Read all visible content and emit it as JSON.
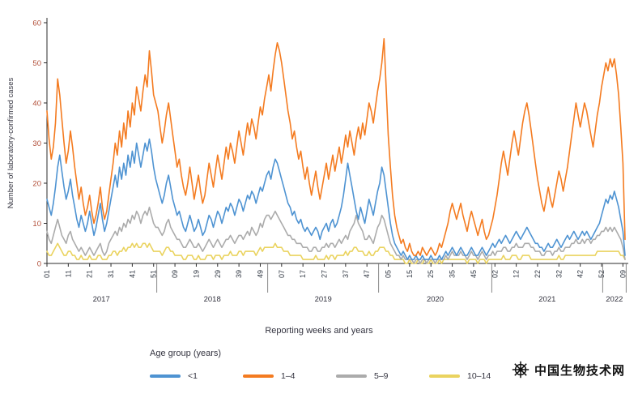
{
  "chart_data": {
    "type": "line",
    "title": "",
    "ylabel": "Number of laboratory-confirmed cases",
    "xlabel": "Reporting weeks and years",
    "legend_title": "Age group (years)",
    "ylim": [
      0,
      60
    ],
    "yticks": [
      0,
      10,
      20,
      30,
      40,
      50,
      60
    ],
    "x_tick_interval": 10,
    "x_tick_labels": [
      "01",
      "11",
      "21",
      "31",
      "41",
      "51",
      "09",
      "19",
      "29",
      "39",
      "49",
      "07",
      "17",
      "27",
      "37",
      "47",
      "05",
      "15",
      "25",
      "35",
      "45",
      "02",
      "12",
      "22",
      "32",
      "42",
      "52",
      "09"
    ],
    "years": [
      {
        "label": "2017",
        "start": 0,
        "end": 51
      },
      {
        "label": "2018",
        "start": 52,
        "end": 103
      },
      {
        "label": "2019",
        "start": 104,
        "end": 155
      },
      {
        "label": "2020",
        "start": 156,
        "end": 208
      },
      {
        "label": "2021",
        "start": 209,
        "end": 260
      },
      {
        "label": "2022",
        "start": 261,
        "end": 271
      }
    ],
    "colors": {
      "y_tick_text": "#b2503a",
      "x_tick_text": "#333a45",
      "axis_line": "#2b2b2b",
      "separator": "#6b6b6b",
      "text": "#33333f"
    },
    "draw_order": [
      3,
      2,
      0,
      1
    ],
    "series": [
      {
        "name": "<1",
        "color": "#4e93d2",
        "values": [
          16,
          14,
          12,
          15,
          19,
          24,
          27,
          23,
          19,
          16,
          18,
          21,
          17,
          14,
          11,
          9,
          12,
          10,
          8,
          10,
          13,
          10,
          7,
          9,
          12,
          15,
          11,
          8,
          10,
          13,
          16,
          19,
          22,
          19,
          24,
          21,
          25,
          22,
          27,
          24,
          28,
          25,
          30,
          27,
          24,
          27,
          30,
          28,
          31,
          28,
          24,
          21,
          19,
          17,
          15,
          17,
          20,
          22,
          19,
          16,
          14,
          12,
          13,
          11,
          9,
          8,
          10,
          12,
          10,
          8,
          9,
          11,
          9,
          7,
          8,
          10,
          12,
          11,
          9,
          11,
          13,
          12,
          10,
          12,
          14,
          13,
          15,
          14,
          12,
          14,
          16,
          15,
          13,
          15,
          17,
          16,
          18,
          17,
          15,
          17,
          19,
          18,
          20,
          22,
          23,
          21,
          24,
          26,
          25,
          23,
          21,
          19,
          17,
          15,
          14,
          12,
          13,
          11,
          10,
          11,
          9,
          8,
          9,
          8,
          7,
          8,
          9,
          8,
          6,
          8,
          9,
          10,
          8,
          10,
          11,
          9,
          10,
          12,
          14,
          17,
          21,
          25,
          22,
          19,
          16,
          13,
          11,
          14,
          12,
          10,
          13,
          16,
          14,
          12,
          15,
          18,
          20,
          24,
          22,
          18,
          14,
          10,
          7,
          5,
          4,
          3,
          2,
          3,
          2,
          1,
          2,
          1,
          1,
          2,
          1,
          1,
          2,
          1,
          1,
          1,
          2,
          1,
          1,
          1,
          2,
          1,
          2,
          3,
          2,
          3,
          4,
          3,
          2,
          3,
          4,
          3,
          2,
          2,
          3,
          4,
          3,
          2,
          2,
          3,
          4,
          3,
          2,
          3,
          4,
          5,
          4,
          5,
          6,
          5,
          6,
          7,
          6,
          5,
          6,
          7,
          8,
          7,
          6,
          7,
          8,
          9,
          8,
          7,
          6,
          5,
          5,
          4,
          4,
          3,
          4,
          5,
          4,
          4,
          5,
          6,
          5,
          4,
          5,
          6,
          7,
          6,
          7,
          8,
          7,
          6,
          7,
          8,
          7,
          8,
          7,
          6,
          7,
          8,
          9,
          10,
          12,
          14,
          16,
          15,
          17,
          16,
          18,
          16,
          14,
          11,
          8,
          2
        ]
      },
      {
        "name": "1–4",
        "color": "#f47b20",
        "values": [
          38,
          31,
          26,
          29,
          35,
          46,
          42,
          36,
          30,
          25,
          28,
          33,
          29,
          24,
          20,
          16,
          19,
          15,
          12,
          14,
          17,
          13,
          10,
          12,
          15,
          19,
          14,
          11,
          13,
          17,
          21,
          25,
          30,
          27,
          33,
          29,
          35,
          31,
          38,
          34,
          40,
          37,
          44,
          41,
          38,
          43,
          47,
          44,
          53,
          48,
          42,
          40,
          38,
          34,
          30,
          33,
          37,
          40,
          36,
          32,
          28,
          24,
          26,
          22,
          19,
          17,
          20,
          24,
          20,
          16,
          19,
          22,
          18,
          15,
          17,
          21,
          25,
          22,
          19,
          23,
          27,
          24,
          21,
          25,
          29,
          26,
          30,
          28,
          25,
          29,
          33,
          30,
          27,
          31,
          35,
          32,
          36,
          34,
          31,
          35,
          39,
          37,
          41,
          44,
          47,
          43,
          48,
          52,
          55,
          53,
          50,
          46,
          42,
          38,
          35,
          31,
          33,
          29,
          26,
          28,
          24,
          21,
          24,
          20,
          17,
          20,
          23,
          19,
          16,
          19,
          22,
          25,
          21,
          24,
          27,
          23,
          26,
          29,
          25,
          28,
          32,
          29,
          33,
          30,
          27,
          31,
          34,
          31,
          35,
          32,
          36,
          40,
          38,
          35,
          39,
          43,
          46,
          50,
          56,
          44,
          32,
          24,
          17,
          12,
          9,
          7,
          5,
          6,
          4,
          3,
          5,
          3,
          2,
          2,
          3,
          2,
          4,
          3,
          2,
          3,
          4,
          3,
          2,
          3,
          5,
          4,
          6,
          8,
          10,
          13,
          15,
          13,
          11,
          13,
          15,
          12,
          10,
          8,
          11,
          13,
          11,
          9,
          7,
          9,
          11,
          8,
          6,
          7,
          9,
          11,
          14,
          17,
          21,
          25,
          28,
          25,
          22,
          26,
          30,
          33,
          30,
          27,
          31,
          35,
          38,
          40,
          37,
          33,
          29,
          25,
          21,
          18,
          15,
          13,
          16,
          19,
          16,
          14,
          17,
          20,
          23,
          21,
          18,
          21,
          24,
          28,
          32,
          36,
          40,
          37,
          34,
          37,
          40,
          38,
          35,
          32,
          29,
          33,
          37,
          40,
          44,
          47,
          50,
          48,
          51,
          49,
          51,
          47,
          42,
          34,
          25,
          6
        ]
      },
      {
        "name": "5–9",
        "color": "#ababab",
        "values": [
          8,
          6,
          5,
          7,
          9,
          11,
          9,
          7,
          6,
          5,
          7,
          8,
          6,
          5,
          4,
          3,
          4,
          3,
          2,
          3,
          4,
          3,
          2,
          3,
          4,
          5,
          3,
          2,
          3,
          5,
          6,
          7,
          8,
          7,
          9,
          8,
          10,
          9,
          11,
          10,
          12,
          11,
          13,
          12,
          10,
          12,
          13,
          12,
          14,
          12,
          10,
          9,
          9,
          8,
          7,
          8,
          10,
          11,
          9,
          8,
          7,
          6,
          6,
          5,
          4,
          4,
          5,
          6,
          5,
          4,
          4,
          5,
          4,
          3,
          4,
          5,
          6,
          5,
          4,
          5,
          6,
          5,
          4,
          5,
          6,
          6,
          7,
          6,
          5,
          6,
          7,
          7,
          6,
          7,
          8,
          7,
          9,
          8,
          7,
          8,
          10,
          9,
          11,
          12,
          12,
          11,
          12,
          13,
          12,
          11,
          10,
          9,
          8,
          7,
          7,
          6,
          6,
          5,
          5,
          5,
          4,
          4,
          4,
          3,
          3,
          4,
          4,
          3,
          3,
          4,
          4,
          5,
          4,
          5,
          5,
          4,
          5,
          6,
          5,
          6,
          7,
          6,
          8,
          9,
          10,
          12,
          10,
          9,
          8,
          6,
          6,
          7,
          6,
          5,
          7,
          9,
          10,
          12,
          11,
          9,
          7,
          5,
          4,
          3,
          2,
          2,
          1,
          2,
          1,
          1,
          1,
          1,
          0,
          1,
          1,
          0,
          1,
          1,
          0,
          1,
          1,
          1,
          0,
          1,
          1,
          1,
          1,
          2,
          1,
          2,
          3,
          2,
          2,
          2,
          3,
          2,
          2,
          1,
          2,
          3,
          2,
          2,
          1,
          2,
          3,
          2,
          1,
          2,
          2,
          3,
          2,
          3,
          3,
          3,
          4,
          4,
          3,
          3,
          4,
          4,
          5,
          4,
          4,
          4,
          5,
          5,
          5,
          4,
          4,
          3,
          3,
          3,
          2,
          2,
          3,
          3,
          3,
          2,
          3,
          3,
          4,
          3,
          3,
          4,
          4,
          4,
          5,
          5,
          6,
          5,
          5,
          6,
          5,
          6,
          6,
          5,
          6,
          6,
          7,
          7,
          8,
          8,
          9,
          8,
          9,
          8,
          9,
          8,
          7,
          6,
          4,
          1
        ]
      },
      {
        "name": "10–14",
        "color": "#ead35f",
        "values": [
          3,
          2,
          2,
          3,
          4,
          5,
          4,
          3,
          2,
          2,
          3,
          3,
          2,
          2,
          1,
          1,
          2,
          1,
          1,
          1,
          2,
          1,
          1,
          1,
          2,
          2,
          1,
          1,
          1,
          2,
          2,
          3,
          3,
          2,
          3,
          3,
          4,
          3,
          4,
          4,
          5,
          4,
          5,
          4,
          4,
          5,
          5,
          4,
          5,
          4,
          3,
          3,
          3,
          3,
          2,
          3,
          4,
          4,
          3,
          3,
          2,
          2,
          2,
          2,
          1,
          1,
          2,
          2,
          2,
          1,
          1,
          2,
          1,
          1,
          1,
          2,
          2,
          2,
          1,
          2,
          2,
          2,
          1,
          2,
          2,
          2,
          3,
          2,
          2,
          2,
          3,
          3,
          2,
          3,
          3,
          3,
          3,
          3,
          2,
          3,
          4,
          3,
          4,
          4,
          4,
          4,
          4,
          5,
          4,
          4,
          4,
          3,
          3,
          3,
          2,
          2,
          2,
          2,
          2,
          2,
          1,
          1,
          1,
          1,
          1,
          1,
          2,
          1,
          1,
          1,
          1,
          2,
          1,
          2,
          2,
          1,
          2,
          2,
          2,
          2,
          3,
          2,
          3,
          3,
          4,
          4,
          3,
          3,
          3,
          2,
          2,
          3,
          2,
          2,
          3,
          3,
          4,
          4,
          4,
          3,
          3,
          2,
          2,
          1,
          1,
          1,
          1,
          1,
          0,
          0,
          1,
          0,
          0,
          0,
          1,
          0,
          0,
          1,
          0,
          0,
          1,
          0,
          0,
          0,
          1,
          0,
          1,
          1,
          1,
          1,
          1,
          1,
          1,
          1,
          1,
          1,
          1,
          0,
          1,
          1,
          1,
          1,
          0,
          1,
          1,
          1,
          0,
          1,
          1,
          1,
          1,
          1,
          1,
          1,
          2,
          1,
          1,
          1,
          2,
          2,
          2,
          1,
          1,
          2,
          2,
          2,
          2,
          1,
          1,
          1,
          1,
          1,
          1,
          1,
          1,
          1,
          1,
          1,
          1,
          1,
          2,
          1,
          1,
          2,
          2,
          2,
          2,
          2,
          2,
          2,
          2,
          2,
          2,
          2,
          2,
          2,
          2,
          2,
          3,
          3,
          3,
          3,
          3,
          3,
          3,
          3,
          3,
          3,
          3,
          2,
          2,
          1
        ]
      }
    ]
  },
  "watermark": {
    "text": "中国生物技术网"
  }
}
